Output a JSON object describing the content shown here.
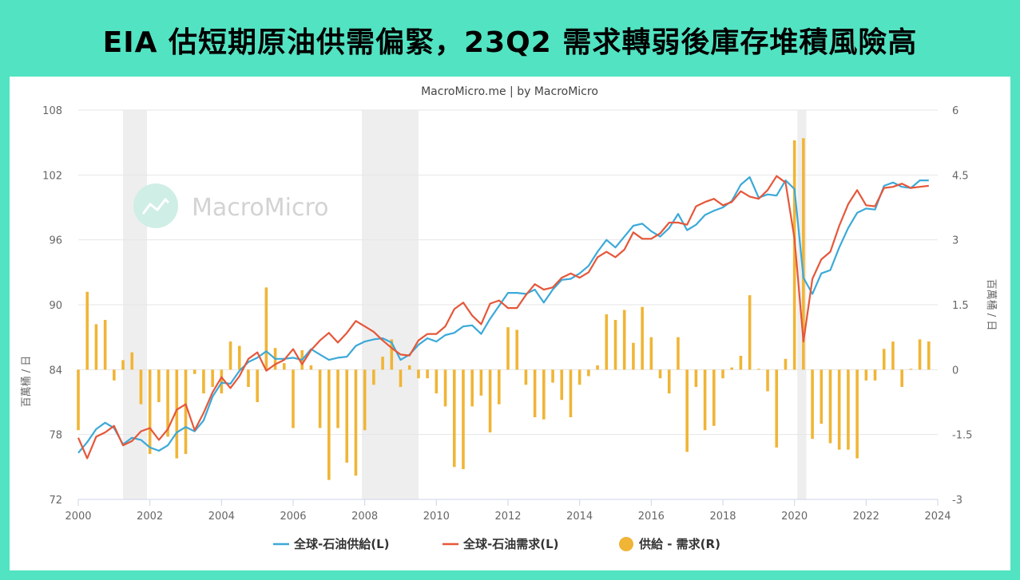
{
  "page_title": "EIA 估短期原油供需偏緊，23Q2 需求轉弱後庫存堆積風險高",
  "chart_data": {
    "type": "line",
    "credit": "MacroMicro.me | by MacroMicro",
    "watermark": "MacroMicro",
    "left_axis": {
      "label": "百萬桶 / 日",
      "range": [
        72,
        108
      ],
      "ticks": [
        72,
        78,
        84,
        90,
        96,
        102,
        108
      ]
    },
    "right_axis": {
      "label": "百萬桶 / 日",
      "range": [
        -3,
        6
      ],
      "ticks": [
        -3,
        -1.5,
        0,
        1.5,
        3,
        4.5,
        6
      ],
      "tick_labels": [
        "-3",
        "-1.5",
        "0",
        "1.5",
        "3",
        "4.5",
        "6"
      ]
    },
    "x_axis": {
      "range": [
        2000,
        2024
      ],
      "ticks": [
        2000,
        2002,
        2004,
        2006,
        2008,
        2010,
        2012,
        2014,
        2016,
        2018,
        2020,
        2022,
        2024
      ]
    },
    "recession_bands": [
      [
        2001.25,
        2001.92
      ],
      [
        2007.92,
        2009.5
      ],
      [
        2020.08,
        2020.33
      ]
    ],
    "legend_position": "bottom",
    "series": [
      {
        "name": "全球-石油供給(L)",
        "axis": "left",
        "render": "line",
        "color": "#3ca9d8",
        "x": [
          2000.0,
          2000.25,
          2000.5,
          2000.75,
          2001.0,
          2001.25,
          2001.5,
          2001.75,
          2002.0,
          2002.25,
          2002.5,
          2002.75,
          2003.0,
          2003.25,
          2003.5,
          2003.75,
          2004.0,
          2004.25,
          2004.5,
          2004.75,
          2005.0,
          2005.25,
          2005.5,
          2005.75,
          2006.0,
          2006.25,
          2006.5,
          2006.75,
          2007.0,
          2007.25,
          2007.5,
          2007.75,
          2008.0,
          2008.25,
          2008.5,
          2008.75,
          2009.0,
          2009.25,
          2009.5,
          2009.75,
          2010.0,
          2010.25,
          2010.5,
          2010.75,
          2011.0,
          2011.25,
          2011.5,
          2011.75,
          2012.0,
          2012.25,
          2012.5,
          2012.75,
          2013.0,
          2013.25,
          2013.5,
          2013.75,
          2014.0,
          2014.25,
          2014.5,
          2014.75,
          2015.0,
          2015.25,
          2015.5,
          2015.75,
          2016.0,
          2016.25,
          2016.5,
          2016.75,
          2017.0,
          2017.25,
          2017.5,
          2017.75,
          2018.0,
          2018.25,
          2018.5,
          2018.75,
          2019.0,
          2019.25,
          2019.5,
          2019.75,
          2020.0,
          2020.25,
          2020.5,
          2020.75,
          2021.0,
          2021.25,
          2021.5,
          2021.75,
          2022.0,
          2022.25,
          2022.5,
          2022.75,
          2023.0,
          2023.25,
          2023.5,
          2023.75
        ],
        "values": [
          76.3,
          77.3,
          78.5,
          79.1,
          78.6,
          77.1,
          77.7,
          77.5,
          76.8,
          76.5,
          77.0,
          78.2,
          78.7,
          78.3,
          79.3,
          81.5,
          82.8,
          82.7,
          83.9,
          84.7,
          85.1,
          85.7,
          85.0,
          85.0,
          85.1,
          84.9,
          85.9,
          85.4,
          84.9,
          85.1,
          85.2,
          86.2,
          86.6,
          86.8,
          86.9,
          86.5,
          84.9,
          85.4,
          86.3,
          86.9,
          86.6,
          87.2,
          87.4,
          88.0,
          88.1,
          87.3,
          88.7,
          89.9,
          91.1,
          91.1,
          91.0,
          91.4,
          90.2,
          91.4,
          92.3,
          92.4,
          92.9,
          93.6,
          94.9,
          96.0,
          95.3,
          96.3,
          97.3,
          97.5,
          96.8,
          96.3,
          97.1,
          98.4,
          96.9,
          97.4,
          98.3,
          98.7,
          99.0,
          99.6,
          101.1,
          101.8,
          99.9,
          100.2,
          100.1,
          101.5,
          100.7,
          92.5,
          91.0,
          92.9,
          93.2,
          95.3,
          97.1,
          98.5,
          98.9,
          98.8,
          101.0,
          101.3,
          100.9,
          100.8,
          101.5,
          101.5
        ]
      },
      {
        "name": "全球-石油需求(L)",
        "axis": "left",
        "render": "line",
        "color": "#e5573a",
        "x": [
          2000.0,
          2000.25,
          2000.5,
          2000.75,
          2001.0,
          2001.25,
          2001.5,
          2001.75,
          2002.0,
          2002.25,
          2002.5,
          2002.75,
          2003.0,
          2003.25,
          2003.5,
          2003.75,
          2004.0,
          2004.25,
          2004.5,
          2004.75,
          2005.0,
          2005.25,
          2005.5,
          2005.75,
          2006.0,
          2006.25,
          2006.5,
          2006.75,
          2007.0,
          2007.25,
          2007.5,
          2007.75,
          2008.0,
          2008.25,
          2008.5,
          2008.75,
          2009.0,
          2009.25,
          2009.5,
          2009.75,
          2010.0,
          2010.25,
          2010.5,
          2010.75,
          2011.0,
          2011.25,
          2011.5,
          2011.75,
          2012.0,
          2012.25,
          2012.5,
          2012.75,
          2013.0,
          2013.25,
          2013.5,
          2013.75,
          2014.0,
          2014.25,
          2014.5,
          2014.75,
          2015.0,
          2015.25,
          2015.5,
          2015.75,
          2016.0,
          2016.25,
          2016.5,
          2016.75,
          2017.0,
          2017.25,
          2017.5,
          2017.75,
          2018.0,
          2018.25,
          2018.5,
          2018.75,
          2019.0,
          2019.25,
          2019.5,
          2019.75,
          2020.0,
          2020.25,
          2020.5,
          2020.75,
          2021.0,
          2021.25,
          2021.5,
          2021.75,
          2022.0,
          2022.25,
          2022.5,
          2022.75,
          2023.0,
          2023.25,
          2023.5,
          2023.75
        ],
        "values": [
          77.7,
          75.8,
          77.8,
          78.2,
          78.8,
          77.0,
          77.4,
          78.3,
          78.6,
          77.5,
          78.5,
          80.3,
          80.8,
          78.4,
          80.0,
          81.9,
          83.3,
          82.3,
          83.4,
          85.0,
          85.6,
          83.9,
          84.5,
          84.9,
          85.9,
          84.5,
          85.8,
          86.7,
          87.4,
          86.5,
          87.4,
          88.5,
          88.0,
          87.5,
          86.7,
          86.0,
          85.4,
          85.3,
          86.7,
          87.3,
          87.3,
          88.0,
          89.6,
          90.2,
          89.0,
          88.2,
          90.1,
          90.4,
          89.7,
          89.7,
          90.9,
          91.9,
          91.4,
          91.6,
          92.5,
          92.9,
          92.5,
          93.0,
          94.4,
          94.9,
          94.4,
          95.1,
          96.7,
          96.1,
          96.1,
          96.6,
          97.6,
          97.6,
          97.4,
          99.1,
          99.5,
          99.8,
          99.2,
          99.5,
          100.5,
          100.0,
          99.8,
          100.6,
          101.9,
          101.3,
          96.1,
          86.6,
          92.4,
          94.2,
          94.9,
          97.3,
          99.3,
          100.6,
          99.2,
          99.1,
          100.8,
          100.9,
          101.2,
          100.8,
          100.9,
          101.0
        ]
      },
      {
        "name": "供給 - 需求(R)",
        "axis": "right",
        "render": "bar",
        "color": "#f0b536",
        "x": [
          2000.0,
          2000.25,
          2000.5,
          2000.75,
          2001.0,
          2001.25,
          2001.5,
          2001.75,
          2002.0,
          2002.25,
          2002.5,
          2002.75,
          2003.0,
          2003.25,
          2003.5,
          2003.75,
          2004.0,
          2004.25,
          2004.5,
          2004.75,
          2005.0,
          2005.25,
          2005.5,
          2005.75,
          2006.0,
          2006.25,
          2006.5,
          2006.75,
          2007.0,
          2007.25,
          2007.5,
          2007.75,
          2008.0,
          2008.25,
          2008.5,
          2008.75,
          2009.0,
          2009.25,
          2009.5,
          2009.75,
          2010.0,
          2010.25,
          2010.5,
          2010.75,
          2011.0,
          2011.25,
          2011.5,
          2011.75,
          2012.0,
          2012.25,
          2012.5,
          2012.75,
          2013.0,
          2013.25,
          2013.5,
          2013.75,
          2014.0,
          2014.25,
          2014.5,
          2014.75,
          2015.0,
          2015.25,
          2015.5,
          2015.75,
          2016.0,
          2016.25,
          2016.5,
          2016.75,
          2017.0,
          2017.25,
          2017.5,
          2017.75,
          2018.0,
          2018.25,
          2018.5,
          2018.75,
          2019.0,
          2019.25,
          2019.5,
          2019.75,
          2020.0,
          2020.25,
          2020.5,
          2020.75,
          2021.0,
          2021.25,
          2021.5,
          2021.75,
          2022.0,
          2022.25,
          2022.5,
          2022.75,
          2023.0,
          2023.25,
          2023.5,
          2023.75
        ],
        "values": [
          -1.4,
          1.8,
          1.05,
          1.15,
          -0.25,
          0.22,
          0.4,
          -0.8,
          -1.95,
          -0.75,
          -1.55,
          -2.05,
          -1.95,
          -0.1,
          -0.55,
          -0.4,
          -0.55,
          0.65,
          0.55,
          -0.4,
          -0.75,
          1.9,
          0.5,
          0.15,
          -1.35,
          0.45,
          0.1,
          -1.35,
          -2.55,
          -1.35,
          -2.15,
          -2.45,
          -1.4,
          -0.35,
          0.3,
          0.7,
          -0.4,
          0.1,
          -0.2,
          -0.2,
          -0.55,
          -0.85,
          -2.25,
          -2.3,
          -0.85,
          -0.6,
          -1.45,
          -0.8,
          0.98,
          0.92,
          -0.35,
          -1.1,
          -1.15,
          -0.3,
          -0.7,
          -1.1,
          -0.35,
          -0.15,
          0.1,
          1.28,
          1.15,
          1.38,
          0.62,
          1.45,
          0.75,
          -0.2,
          -0.55,
          0.75,
          -1.9,
          -0.4,
          -1.4,
          -1.3,
          -0.2,
          0.05,
          0.32,
          1.72,
          0.02,
          -0.5,
          -1.8,
          0.25,
          5.3,
          5.35,
          -1.6,
          -1.25,
          -1.7,
          -1.85,
          -1.85,
          -2.05,
          -0.25,
          -0.25,
          0.48,
          0.65,
          -0.4,
          0.02,
          0.7,
          0.65
        ]
      }
    ]
  },
  "colors": {
    "background": "#52e3c2",
    "card": "#ffffff",
    "recession": "#eeeeee"
  }
}
